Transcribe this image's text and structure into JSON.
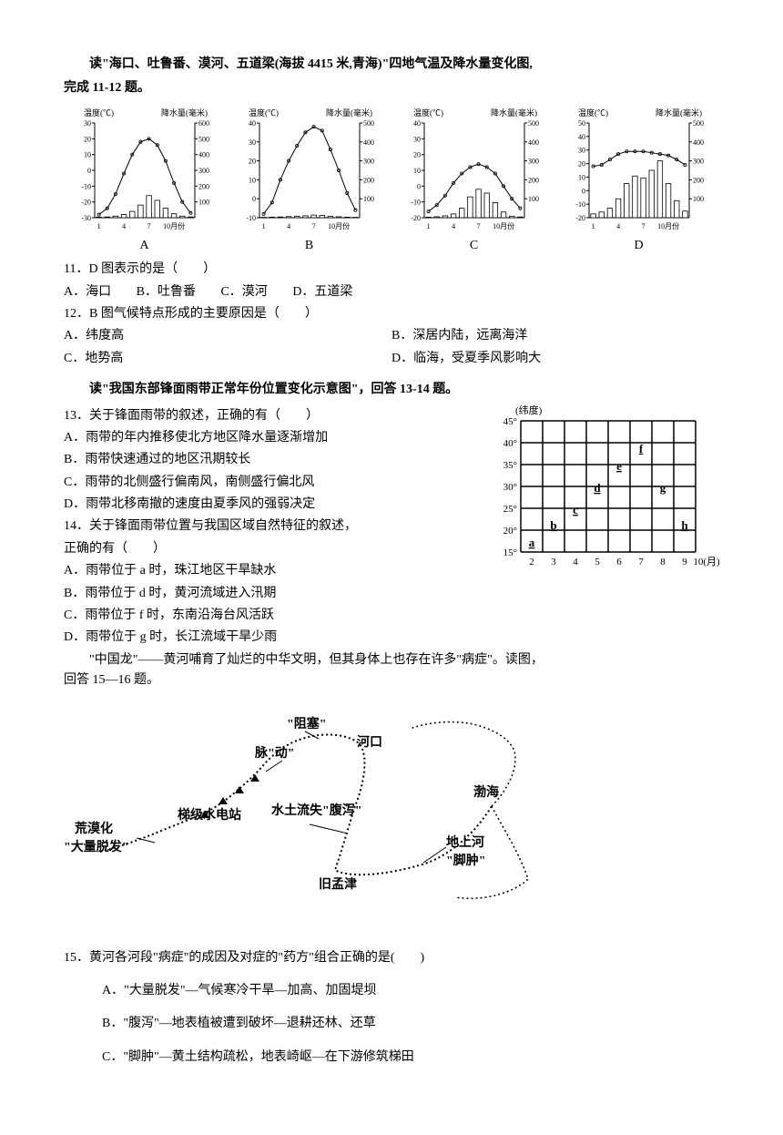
{
  "intro1": {
    "line1": "读\"海口、吐鲁番、漠河、五道梁(海拔 4415 米,青海)\"四地气温及降水量变化图,",
    "line2": "完成 11-12 题。"
  },
  "charts": {
    "panels": [
      "A",
      "B",
      "C",
      "D"
    ],
    "temp_axis_label": "温度(℃)",
    "precip_axis_label": "降水量(毫米)",
    "xaxis_ticks": [
      "1",
      "4",
      "7",
      "10月份"
    ],
    "A": {
      "temp_yticks": [
        -30,
        -20,
        -10,
        0,
        10,
        20,
        30
      ],
      "precip_yticks": [
        100,
        200,
        300,
        400,
        500,
        600
      ],
      "temp_values": [
        -28,
        -24,
        -15,
        -2,
        10,
        18,
        20,
        16,
        6,
        -8,
        -20,
        -27
      ],
      "precip_values": [
        4,
        5,
        10,
        20,
        40,
        80,
        140,
        110,
        60,
        25,
        10,
        5
      ],
      "precip_max_scale": 600
    },
    "B": {
      "temp_yticks": [
        -10,
        0,
        10,
        20,
        30,
        40
      ],
      "precip_yticks": [
        100,
        200,
        300,
        400,
        500
      ],
      "temp_values": [
        -8,
        -2,
        10,
        20,
        28,
        35,
        38,
        36,
        26,
        15,
        3,
        -6
      ],
      "precip_values": [
        2,
        3,
        4,
        6,
        8,
        10,
        14,
        12,
        8,
        5,
        3,
        2
      ],
      "precip_max_scale": 500
    },
    "C": {
      "temp_yticks": [
        -20,
        -10,
        0,
        10,
        20,
        30,
        40
      ],
      "precip_yticks": [
        100,
        200,
        300,
        400,
        500
      ],
      "temp_values": [
        -16,
        -12,
        -6,
        2,
        8,
        12,
        14,
        12,
        8,
        0,
        -8,
        -14
      ],
      "precip_values": [
        3,
        5,
        10,
        20,
        50,
        110,
        150,
        130,
        80,
        30,
        8,
        4
      ],
      "precip_max_scale": 500
    },
    "D": {
      "temp_yticks": [
        -20,
        -10,
        0,
        10,
        20,
        30,
        40,
        50
      ],
      "precip_yticks": [
        100,
        200,
        300,
        400,
        500
      ],
      "temp_values": [
        18,
        19,
        23,
        27,
        29,
        29,
        29,
        28,
        27,
        26,
        23,
        19
      ],
      "precip_values": [
        20,
        30,
        50,
        100,
        180,
        220,
        210,
        250,
        300,
        180,
        90,
        35
      ],
      "precip_max_scale": 500
    },
    "line_color": "#000000",
    "bar_color": "#ffffff",
    "bar_stroke": "#000000",
    "axis_color": "#000000"
  },
  "q11": {
    "stem": "11．D 图表示的是（　　）",
    "opts": {
      "A": "A．海口",
      "B": "B．吐鲁番",
      "C": "C．漠河",
      "D": "D．五道梁"
    }
  },
  "q12": {
    "stem": "12．B 图气候特点形成的主要原因是（　　）",
    "opts": {
      "A": "A．纬度高",
      "B": "B．深居内陆，远离海洋",
      "C": "C．地势高",
      "D": "D．临海，受夏季风影响大"
    }
  },
  "intro2": "读\"我国东部锋面雨带正常年份位置变化示意图\"，回答 13-14 题。",
  "q13": {
    "stem": "13．关于锋面雨带的叙述，正确的有（　　）",
    "opts": {
      "A": "A．雨带的年内推移使北方地区降水量逐渐增加",
      "B": "B．雨带快速通过的地区汛期较长",
      "C": "C．雨带的北侧盛行偏南风，南侧盛行偏北风",
      "D": "D．雨带北移南撤的速度由夏季风的强弱决定"
    }
  },
  "q14": {
    "stem1": "14．关于锋面雨带位置与我国区域自然特征的叙述，",
    "stem2": "正确的有（　　）",
    "opts": {
      "A": "A．雨带位于 a 时，珠江地区干旱缺水",
      "B": "B．雨带位于 d 时，黄河流域进入汛期",
      "C": "C．雨带位于 f 时，东南沿海台风活跃",
      "D": "D．雨带位于 g 时，长江流域干旱少雨"
    }
  },
  "rain_diagram": {
    "y_label": "(纬度)",
    "y_ticks": [
      "45°",
      "40°",
      "35°",
      "30°",
      "25°",
      "20°",
      "15°"
    ],
    "x_ticks": [
      "2",
      "3",
      "4",
      "5",
      "6",
      "7",
      "8",
      "9",
      "10(月)"
    ],
    "cells": [
      {
        "label": "a",
        "gx": 0,
        "gy": 5
      },
      {
        "label": "b",
        "gx": 1,
        "gy": 4.2
      },
      {
        "label": "c",
        "gx": 2,
        "gy": 3.5
      },
      {
        "label": "d",
        "gx": 3,
        "gy": 2.5
      },
      {
        "label": "e",
        "gx": 4,
        "gy": 1.5
      },
      {
        "label": "f",
        "gx": 5,
        "gy": 0.7
      },
      {
        "label": "g",
        "gx": 6,
        "gy": 2.5
      },
      {
        "label": "h",
        "gx": 7,
        "gy": 4.2
      }
    ],
    "grid_color": "#000000",
    "bg_color": "#ffffff",
    "font_size": 11
  },
  "intro3": {
    "line1": "\"中国龙\"——黄河哺育了灿烂的中华文明，但其身体上也存在许多\"病症\"。读图，",
    "line2": "回答 15—16 题。"
  },
  "map": {
    "labels": {
      "zuse": "\"阻塞\"",
      "hekou": "河口",
      "maidong": "脉\"动\"",
      "tijia": "梯级水电站",
      "shuitu": "水土流失\"腹泻\"",
      "huangmo1": "荒漠化",
      "huangmo2": "\"大量脱发\"",
      "bohai": "渤海",
      "dishanghe1": "地上河",
      "dishanghe2": "\"脚肿\"",
      "mengjin": "旧孟津"
    },
    "river_color": "#000000"
  },
  "q15": {
    "stem": "15．黄河各河段\"病症\"的成因及对症的\"药方\"组合正确的是(　　)",
    "opts": {
      "A": "A．\"大量脱发\"—气候寒冷干旱—加高、加固堤坝",
      "B": "B．\"腹泻\"—地表植被遭到破坏—退耕还林、还草",
      "C": "C．\"脚肿\"—黄土结构疏松，地表崎岖—在下游修筑梯田"
    }
  }
}
